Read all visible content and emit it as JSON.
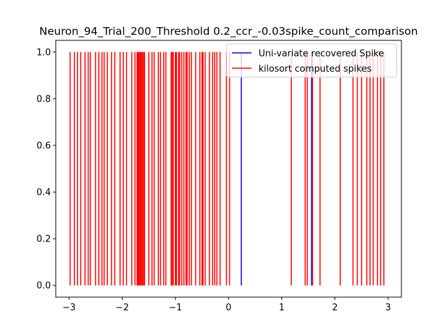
{
  "chart_data": {
    "type": "line",
    "title": "Neuron_94_Trial_200_Threshold 0.2_ccr_-0.03spike_count_comparison",
    "xlabel": "",
    "ylabel": "",
    "xlim": [
      -3.25,
      3.25
    ],
    "ylim": [
      -0.05,
      1.05
    ],
    "grid": false,
    "legend_position": "top-right",
    "x_ticks": [
      {
        "value": -3,
        "label": "−3"
      },
      {
        "value": -2,
        "label": "−2"
      },
      {
        "value": -1,
        "label": "−1"
      },
      {
        "value": 0,
        "label": "0"
      },
      {
        "value": 1,
        "label": "1"
      },
      {
        "value": 2,
        "label": "2"
      },
      {
        "value": 3,
        "label": "3"
      }
    ],
    "y_ticks": [
      {
        "value": 0.0,
        "label": "0.0"
      },
      {
        "value": 0.2,
        "label": "0.2"
      },
      {
        "value": 0.4,
        "label": "0.4"
      },
      {
        "value": 0.6,
        "label": "0.6"
      },
      {
        "value": 0.8,
        "label": "0.8"
      },
      {
        "value": 1.0,
        "label": "1.0"
      }
    ],
    "series": [
      {
        "name": "Uni-variate recovered Spike",
        "color": "#0000ff",
        "spike_times": [
          0.24,
          1.56
        ]
      },
      {
        "name": "kilosort computed spikes",
        "color": "#ff0000",
        "spike_times": [
          -2.98,
          -2.9,
          -2.84,
          -2.78,
          -2.7,
          -2.64,
          -2.6,
          -2.5,
          -2.44,
          -2.38,
          -2.34,
          -2.28,
          -2.2,
          -2.14,
          -2.04,
          -1.98,
          -1.92,
          -1.82,
          -1.76,
          -1.72,
          -1.7,
          -1.68,
          -1.66,
          -1.64,
          -1.62,
          -1.6,
          -1.58,
          -1.5,
          -1.44,
          -1.4,
          -1.32,
          -1.28,
          -1.22,
          -1.18,
          -1.08,
          -1.06,
          -1.04,
          -1.0,
          -0.98,
          -0.94,
          -0.92,
          -0.88,
          -0.84,
          -0.8,
          -0.78,
          -0.74,
          -0.7,
          -0.62,
          -0.54,
          -0.5,
          -0.48,
          -0.44,
          -0.36,
          -0.3,
          -0.26,
          -0.22,
          -0.16,
          -0.04,
          0.02,
          1.18,
          1.44,
          1.48,
          1.58,
          1.72,
          2.1,
          2.34,
          2.42,
          2.5,
          2.6,
          2.66,
          2.72,
          2.8,
          2.86,
          2.92
        ]
      }
    ]
  }
}
